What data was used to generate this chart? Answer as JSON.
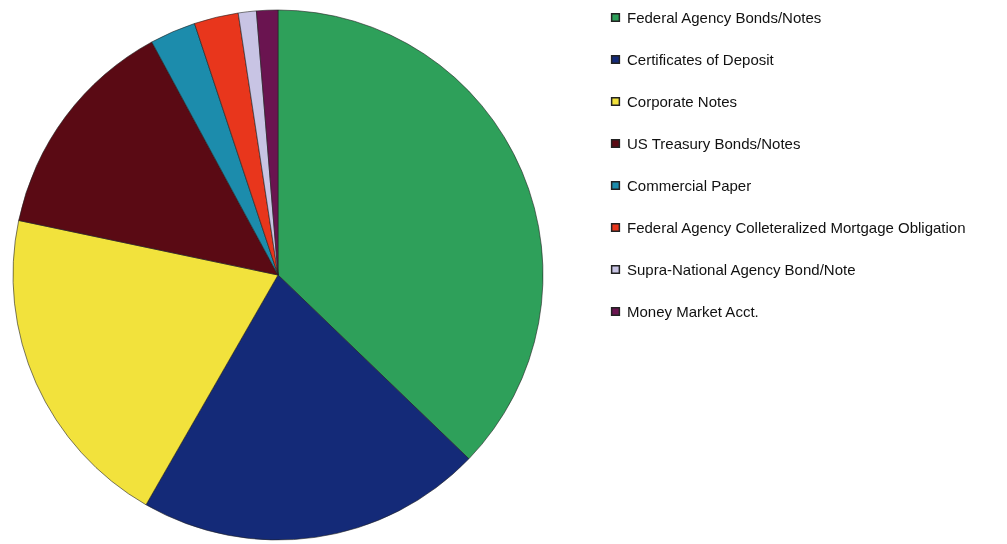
{
  "chart_data": {
    "type": "pie",
    "categories": [
      "Federal Agency Bonds/Notes",
      "Certificates of Deposit",
      "Corporate Notes",
      "US Treasury Bonds/Notes",
      "Commercial Paper",
      "Federal Agency Colleteralized Mortgage Obligation",
      "Supra-National Agency Bond/Note",
      "Money Market Acct."
    ],
    "values": [
      37.2,
      21.1,
      20,
      13.8,
      2.8,
      2.7,
      1.1,
      1.3
    ],
    "colors": [
      "#2ea05a",
      "#142a78",
      "#f2e23c",
      "#5a0a14",
      "#1c8cac",
      "#e8361c",
      "#c8c4e4",
      "#6a1450"
    ],
    "legend": "right"
  }
}
